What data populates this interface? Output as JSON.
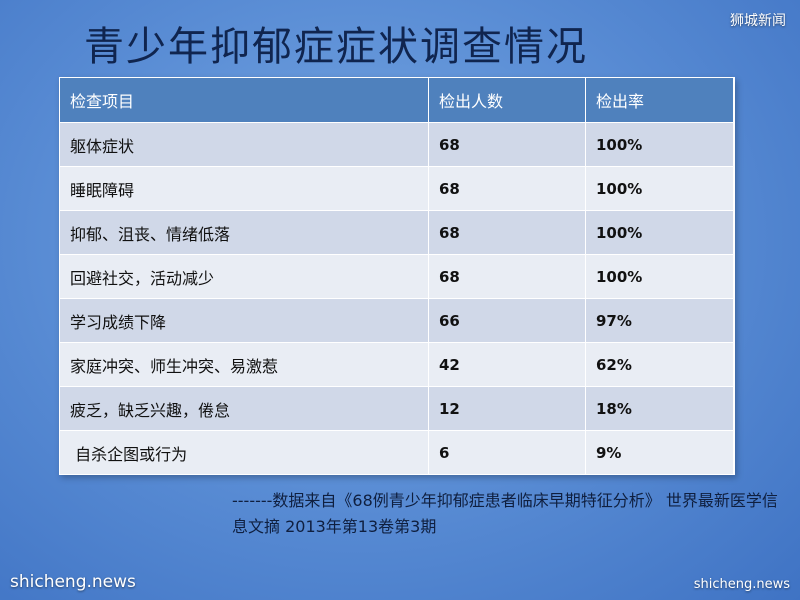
{
  "title": "青少年抑郁症症状调查情况",
  "watermarks": {
    "top_right": "狮城新闻",
    "bottom_left": "shicheng.news",
    "bottom_right": "shicheng.news"
  },
  "table": {
    "headers": [
      "检查项目",
      "检出人数",
      "检出率"
    ],
    "rows": [
      {
        "item": "躯体症状",
        "count": "68",
        "rate": "100%"
      },
      {
        "item": "睡眠障碍",
        "count": "68",
        "rate": "100%"
      },
      {
        "item": "抑郁、沮丧、情绪低落",
        "count": "68",
        "rate": "100%"
      },
      {
        "item": "回避社交，活动减少",
        "count": "68",
        "rate": "100%"
      },
      {
        "item": "学习成绩下降",
        "count": "66",
        "rate": "97%"
      },
      {
        "item": "家庭冲突、师生冲突、易激惹",
        "count": "42",
        "rate": "62%"
      },
      {
        "item": "疲乏，缺乏兴趣，倦怠",
        "count": "12",
        "rate": "18%"
      },
      {
        "item": " 自杀企图或行为",
        "count": "6",
        "rate": "9%"
      }
    ]
  },
  "source": "-------数据来自《68例青少年抑郁症患者临床早期特征分析》 世界最新医学信息文摘 2013年第13卷第3期"
}
